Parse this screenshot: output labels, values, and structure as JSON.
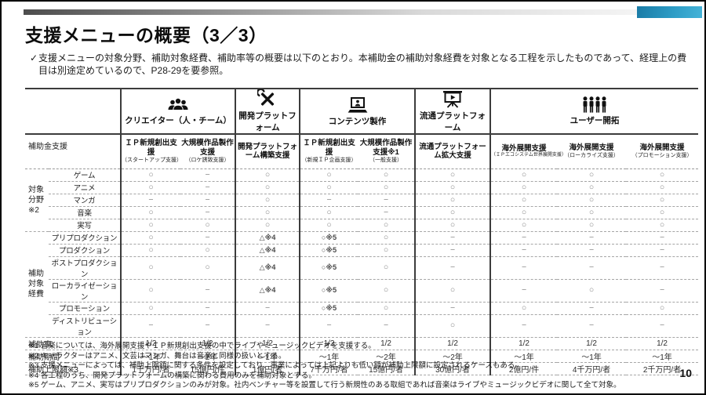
{
  "title": "支援メニューの概要（3／3）",
  "intro": {
    "check": "✓",
    "text": "支援メニューの対象分野、補助対象経費、補助率等の概要は以下のとおり。本補助金の補助対象経費を対象となる工程を示したものであって、経理上の費目は別途定めているので、P28-29を要参照。"
  },
  "colors": {
    "accent_teal": "#2d9cc5",
    "bar_dark": "#4d4d4d",
    "grid_dark": "#3c3c3c"
  },
  "table": {
    "corner_label": "補助金支援",
    "groups": [
      {
        "label": "クリエイター（人・チーム）",
        "icon": "people-group-icon",
        "span": 2
      },
      {
        "label": "開発プラットフォーム",
        "icon": "tools-icon",
        "span": 1
      },
      {
        "label": "コンテンツ製作",
        "icon": "laptop-icon",
        "span": 2
      },
      {
        "label": "流通プラットフォーム",
        "icon": "screen-play-icon",
        "span": 1
      },
      {
        "label": "ユーザー開拓",
        "icon": "users-icon",
        "span": 3
      }
    ],
    "menus": [
      {
        "name": "ＩＰ新規創出支援",
        "sub": "（スタートアップ支援）"
      },
      {
        "name": "大規模作品製作支援",
        "sub": "（ロケ誘致支援）"
      },
      {
        "name": "開発プラットフォーム構築支援",
        "sub": ""
      },
      {
        "name": "ＩＰ新規創出支援",
        "sub": "（新規ＩＰ企画支援）"
      },
      {
        "name": "大規模作品製作支援※1",
        "sub": "（一般支援）"
      },
      {
        "name": "流通プラットフォーム拡大支援",
        "sub": ""
      },
      {
        "name": "海外展開支援",
        "sub": "（ＩＰエコシステム世界展開支援）"
      },
      {
        "name": "海外展開支援",
        "sub": "（ローカライズ支援）"
      },
      {
        "name": "海外展開支援",
        "sub": "（プロモーション支援）"
      }
    ],
    "row_groups": [
      {
        "label": "対象分野\n※2",
        "rows": [
          {
            "label": "ゲーム",
            "cells": [
              "○",
              "−",
              "○",
              "○",
              "○",
              "○",
              "○",
              "○",
              "○"
            ]
          },
          {
            "label": "アニメ",
            "cells": [
              "○",
              "−",
              "○",
              "○",
              "○",
              "○",
              "○",
              "○",
              "○"
            ]
          },
          {
            "label": "マンガ",
            "cells": [
              "−",
              "−",
              "○",
              "−",
              "−",
              "○",
              "○",
              "○",
              "○"
            ]
          },
          {
            "label": "音楽",
            "cells": [
              "○",
              "−",
              "○",
              "○",
              "−",
              "○",
              "○",
              "○",
              "○"
            ]
          },
          {
            "label": "実写",
            "cells": [
              "○",
              "○",
              "○",
              "○",
              "○",
              "○",
              "○",
              "○",
              "○"
            ]
          }
        ]
      },
      {
        "label": "補助対象\n経費",
        "rows": [
          {
            "label": "プリプロダクション",
            "cells": [
              "○",
              "−",
              "△※4",
              "○※5",
              "○",
              "−",
              "−",
              "−",
              "−"
            ]
          },
          {
            "label": "プロダクション",
            "cells": [
              "○",
              "○",
              "△※4",
              "○※5",
              "○",
              "−",
              "−",
              "−",
              "−"
            ]
          },
          {
            "label": "ポストプロダクション",
            "cells": [
              "○",
              "○",
              "△※4",
              "○※5",
              "○",
              "−",
              "−",
              "−",
              "−"
            ]
          },
          {
            "label": "ローカライゼーション",
            "cells": [
              "○",
              "−",
              "△※4",
              "○※5",
              "○",
              "○",
              "−",
              "○",
              "−"
            ]
          },
          {
            "label": "プロモーション",
            "cells": [
              "○",
              "−",
              "−",
              "○※5",
              "○",
              "−",
              "○",
              "−",
              "○"
            ]
          },
          {
            "label": "ディストリビューション",
            "cells": [
              "−",
              "−",
              "−",
              "−",
              "−",
              "○",
              "−",
              "−",
              "−"
            ]
          }
        ]
      }
    ],
    "summary_rows": [
      {
        "label": "補助率",
        "cells": [
          "1/2",
          "1/2",
          "1/2",
          "1/2",
          "1/2",
          "1/2",
          "1/2",
          "1/2",
          "1/2"
        ]
      },
      {
        "label": "補助期間",
        "cells": [
          "～1年",
          "～2年",
          "～1年",
          "～1年",
          "～2年",
          "～2年",
          "～1年",
          "～1年",
          "～1年"
        ]
      },
      {
        "label": "補助上限額※3",
        "cells": [
          "1千万円/者",
          "15億円/件",
          "1億円/者",
          "7千万円/者",
          "15億円/者",
          "30億円/者",
          "2億円/件",
          "4千万円/者",
          "2千万円/者"
        ]
      }
    ]
  },
  "footnotes": [
    "※1 音楽については、海外展開支援やＩＰ新規創出支援の中でライブやミュージックビデオを支援する。",
    "※2 キャラクターはアニメ、文芸はマンガ、舞台は音楽と同様の扱いとする。",
    "※3 支援メニューによっては、補助上限額に関する条件を設定しており、事業によっては上記よりも低い額が補助上限額に設定されるケースもある。",
    "※4 各工程のうち、開発プラットフォームの構築に関わる費用のみを補助対象とする。",
    "※5 ゲーム、アニメ、実写はプリプロダクションのみが対象。社内ベンチャー等を設置して行う新規性のある取組であれば音楽はライブやミュージックビデオに関して全て対象。"
  ],
  "page": {
    "number": "10"
  }
}
